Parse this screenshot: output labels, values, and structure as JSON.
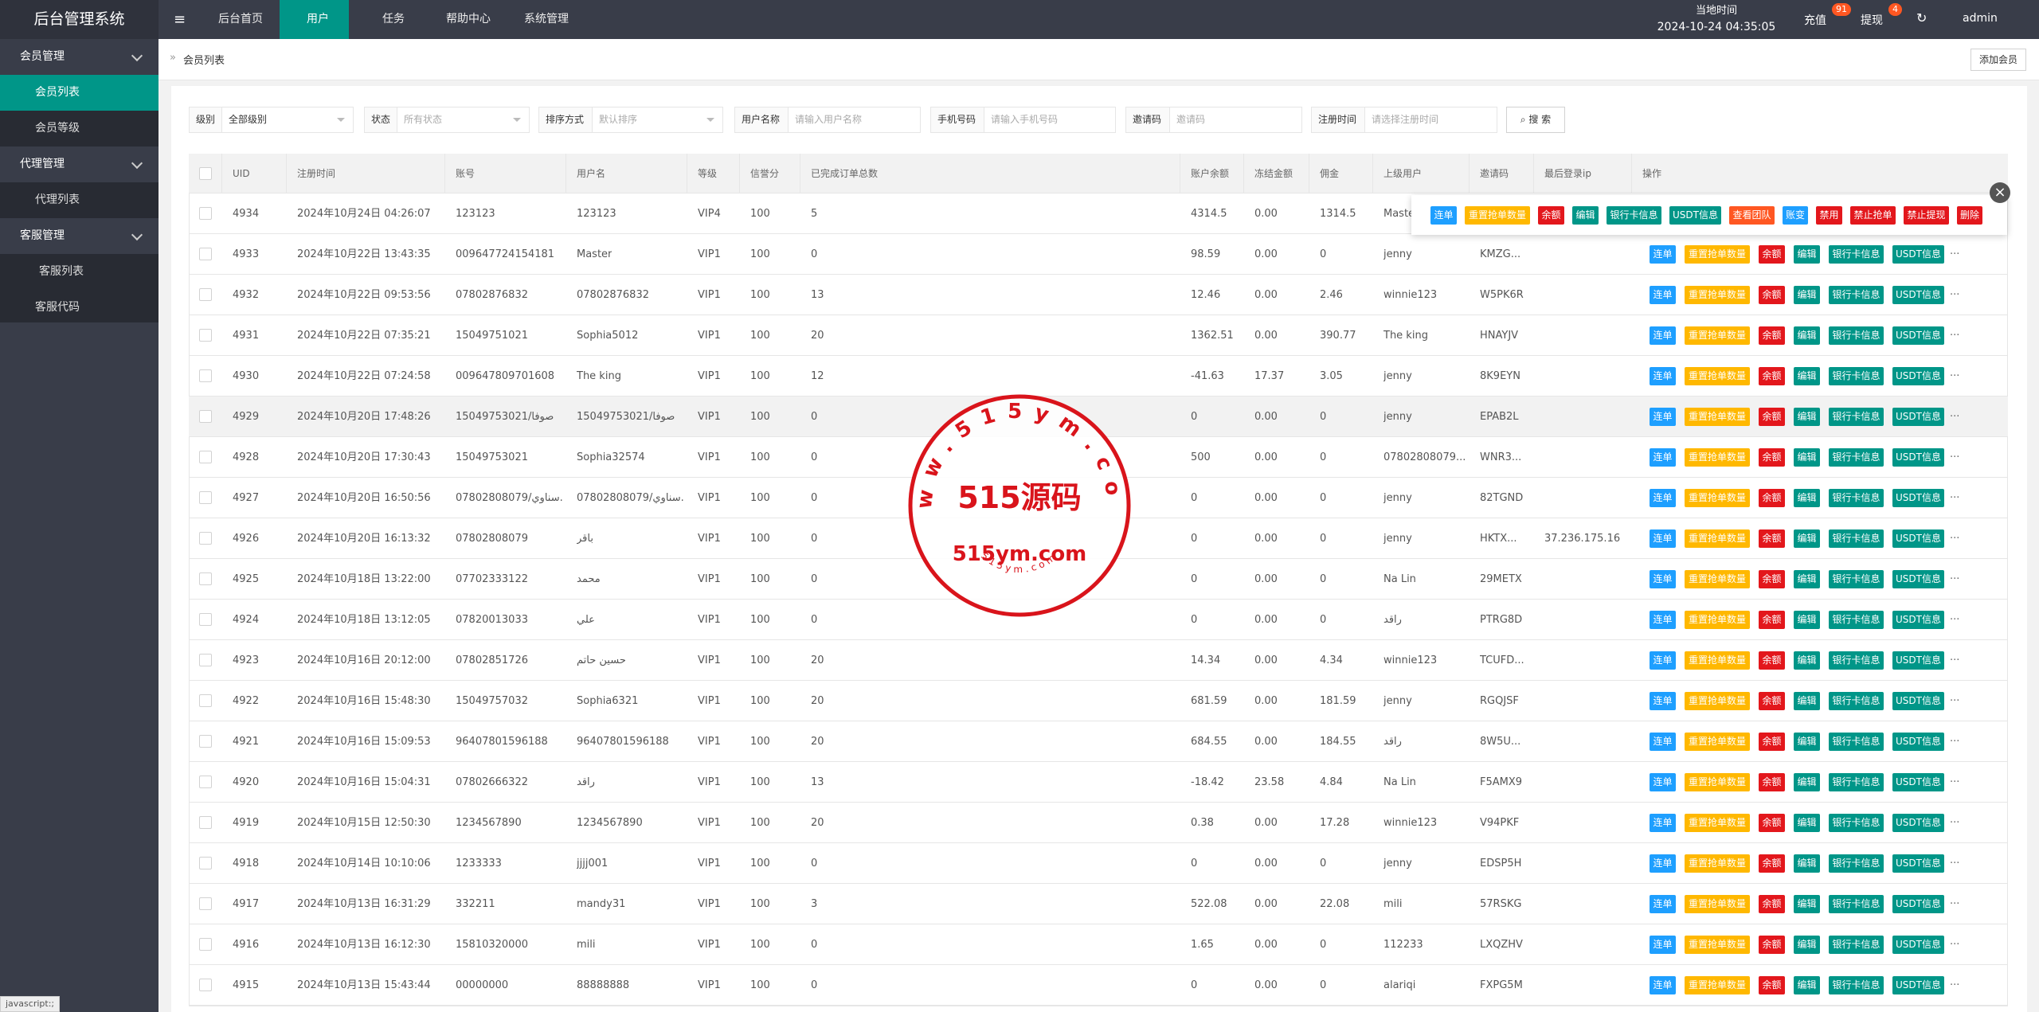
{
  "topbar": {
    "logo": "后台管理系统",
    "nav": [
      "后台首页",
      "用户",
      "任务",
      "帮助中心",
      "系统管理"
    ],
    "time_label": "当地时间",
    "time": "2024-10-24 04:35:05",
    "recharge": "充值",
    "recharge_badge": "91",
    "withdraw": "提现",
    "withdraw_badge": "4",
    "user": "admin"
  },
  "sidebar": [
    {
      "label": "会员管理",
      "items": [
        "会员列表",
        "会员等级"
      ]
    },
    {
      "label": "代理管理",
      "items": [
        "代理列表"
      ]
    },
    {
      "label": "客服管理",
      "items": [
        "客服列表",
        "客服代码"
      ]
    }
  ],
  "breadcrumb": "会员列表",
  "add_button": "添加会员",
  "filters": [
    {
      "label": "级别",
      "placeholder": "全部级别"
    },
    {
      "label": "状态",
      "placeholder": "所有状态"
    },
    {
      "label": "排序方式",
      "placeholder": "默认排序"
    },
    {
      "label": "用户名称",
      "placeholder": "请输入用户名称"
    },
    {
      "label": "手机号码",
      "placeholder": "请输入手机号码"
    },
    {
      "label": "邀请码",
      "placeholder": "邀请码"
    },
    {
      "label": "注册时间",
      "placeholder": "请选择注册时间"
    }
  ],
  "search_button": "搜 索",
  "table": {
    "headers": [
      "UID",
      "注册时间",
      "账号",
      "用户名",
      "等级",
      "信誉分",
      "已完成订单总数",
      "账户余额",
      "冻结金额",
      "佣金",
      "上级用户",
      "邀请码",
      "最后登录ip",
      "操作"
    ],
    "rows": [
      [
        "4934",
        "2024年10月24日 04:26:07",
        "123123",
        "123123",
        "VIP4",
        "100",
        "5",
        "4314.5",
        "0.00",
        "1314.5",
        "Master",
        null,
        null
      ],
      [
        "4933",
        "2024年10月22日 13:43:35",
        "009647724154181",
        "Master",
        "VIP1",
        "100",
        "0",
        "98.59",
        "0.00",
        "0",
        "jenny",
        "KMZG...",
        null
      ],
      [
        "4932",
        "2024年10月22日 09:53:56",
        "07802876832",
        "07802876832",
        "VIP1",
        "100",
        "13",
        "12.46",
        "0.00",
        "2.46",
        "winnie123",
        "W5PK6R",
        null
      ],
      [
        "4931",
        "2024年10月22日 07:35:21",
        "15049751021",
        "Sophia5012",
        "VIP1",
        "100",
        "20",
        "1362.51",
        "0.00",
        "390.77",
        "The king",
        "HNAYJV",
        null
      ],
      [
        "4930",
        "2024年10月22日 07:24:58",
        "009647809701608",
        "The king",
        "VIP1",
        "100",
        "12",
        "-41.63",
        "17.37",
        "3.05",
        "jenny",
        "8K9EYN",
        null
      ],
      [
        "4929",
        "2024年10月20日 17:48:26",
        "15049753021/صوفا",
        "15049753021/صوفا",
        "VIP1",
        "100",
        "0",
        "0",
        "0.00",
        "0",
        "jenny",
        "EPAB2L",
        null
      ],
      [
        "4928",
        "2024年10月20日 17:30:43",
        "15049753021",
        "Sophia32574",
        "VIP1",
        "100",
        "0",
        "500",
        "0.00",
        "0",
        "07802808079...",
        "WNR3...",
        null
      ],
      [
        "4927",
        "2024年10月20日 16:50:56",
        "07802808079/سناوي...",
        "07802808079/سناوي...",
        "VIP1",
        "100",
        "0",
        "0",
        "0.00",
        "0",
        "jenny",
        "82TGND",
        null
      ],
      [
        "4926",
        "2024年10月20日 16:13:32",
        "07802808079",
        "باقر",
        "VIP1",
        "100",
        "0",
        "0",
        "0.00",
        "0",
        "jenny",
        "HKTX...",
        "37.236.175.16"
      ],
      [
        "4925",
        "2024年10月18日 13:22:00",
        "07702333122",
        "محمد",
        "VIP1",
        "100",
        "0",
        "0",
        "0.00",
        "0",
        "Na Lin",
        "29METX",
        null
      ],
      [
        "4924",
        "2024年10月18日 13:12:05",
        "07820013033",
        "علي",
        "VIP1",
        "100",
        "0",
        "0",
        "0.00",
        "0",
        "راقد",
        "PTRG8D",
        null
      ],
      [
        "4923",
        "2024年10月16日 20:12:00",
        "07802851726",
        "حسين حاتم",
        "VIP1",
        "100",
        "20",
        "14.34",
        "0.00",
        "4.34",
        "winnie123",
        "TCUFD...",
        null
      ],
      [
        "4922",
        "2024年10月16日 15:48:30",
        "15049757032",
        "Sophia6321",
        "VIP1",
        "100",
        "20",
        "681.59",
        "0.00",
        "181.59",
        "jenny",
        "RGQJSF",
        null
      ],
      [
        "4921",
        "2024年10月16日 15:09:53",
        "96407801596188",
        "96407801596188",
        "VIP1",
        "100",
        "20",
        "684.55",
        "0.00",
        "184.55",
        "راقد",
        "8W5U...",
        null
      ],
      [
        "4920",
        "2024年10月16日 15:04:31",
        "07802666322",
        "راقد",
        "VIP1",
        "100",
        "13",
        "-18.42",
        "23.58",
        "4.84",
        "Na Lin",
        "F5AMX9",
        null
      ],
      [
        "4919",
        "2024年10月15日 12:50:30",
        "1234567890",
        "1234567890",
        "VIP1",
        "100",
        "20",
        "0.38",
        "0.00",
        "17.28",
        "winnie123",
        "V94PKF",
        null
      ],
      [
        "4918",
        "2024年10月14日 10:10:06",
        "1233333",
        "jjjj001",
        "VIP1",
        "100",
        "0",
        "0",
        "0.00",
        "0",
        "jenny",
        "EDSP5H",
        null
      ],
      [
        "4917",
        "2024年10月13日 16:31:29",
        "332211",
        "mandy31",
        "VIP1",
        "100",
        "3",
        "522.08",
        "0.00",
        "22.08",
        "mili",
        "57RSKG",
        null
      ],
      [
        "4916",
        "2024年10月13日 16:12:30",
        "15810320000",
        "mili",
        "VIP1",
        "100",
        "0",
        "1.65",
        "0.00",
        "0",
        "112233",
        "LXQZHV",
        null
      ],
      [
        "4915",
        "2024年10月13日 15:43:44",
        "00000000",
        "88888888",
        "VIP1",
        "100",
        "0",
        "0",
        "0.00",
        "0",
        "alariqi",
        "FXPG5M",
        null
      ]
    ],
    "row_actions": [
      "连单",
      "重置抢单数量",
      "余额",
      "编辑",
      "银行卡信息",
      "USDT信息"
    ],
    "more": "...",
    "popup_actions": [
      "连单",
      "重置抢单数量",
      "余额",
      "编辑",
      "银行卡信息",
      "USDT信息",
      "查看团队",
      "账变",
      "禁用",
      "禁止抢单",
      "禁止提现",
      "删除"
    ]
  },
  "watermark": {
    "arc": "www.515ym.com",
    "main": "515源码",
    "site": "515ym.com",
    "small": "515ym.com"
  },
  "status_bar": "javascript:;"
}
